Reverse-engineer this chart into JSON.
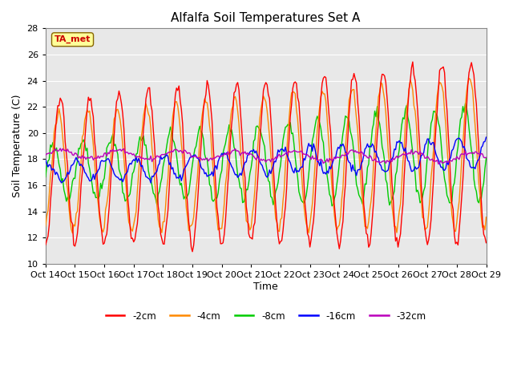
{
  "title": "Alfalfa Soil Temperatures Set A",
  "xlabel": "Time",
  "ylabel": "Soil Temperature (C)",
  "ylim": [
    10,
    28
  ],
  "xlim": [
    0,
    360
  ],
  "xtick_labels": [
    "Oct 14",
    "Oct 15",
    "Oct 16",
    "Oct 17",
    "Oct 18",
    "Oct 19",
    "Oct 20",
    "Oct 21",
    "Oct 22",
    "Oct 23",
    "Oct 24",
    "Oct 25",
    "Oct 26",
    "Oct 27",
    "Oct 28",
    "Oct 29"
  ],
  "colors": {
    "cm2": "#FF0000",
    "cm4": "#FF8800",
    "cm8": "#00CC00",
    "cm16": "#0000FF",
    "cm32": "#BB00BB"
  },
  "legend_labels": [
    "-2cm",
    "-4cm",
    "-8cm",
    "-16cm",
    "-32cm"
  ],
  "background_color": "#E8E8E8",
  "ta_met_label": "TA_met",
  "ta_met_color": "#CC0000",
  "ta_met_bg": "#FFFF99"
}
